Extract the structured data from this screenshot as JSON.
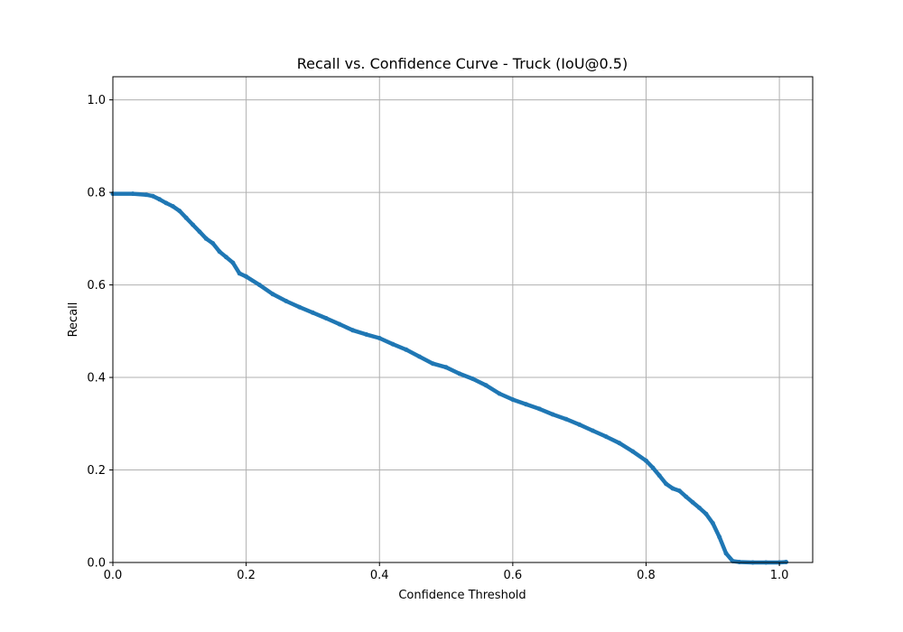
{
  "chart_data": {
    "type": "line",
    "title": "Recall vs. Confidence Curve - Truck (IoU@0.5)",
    "xlabel": "Confidence Threshold",
    "ylabel": "Recall",
    "xlim": [
      0.0,
      1.05
    ],
    "ylim": [
      0.0,
      1.05
    ],
    "xticks": [
      "0.0",
      "0.2",
      "0.4",
      "0.6",
      "0.8",
      "1.0"
    ],
    "yticks": [
      "0.0",
      "0.2",
      "0.4",
      "0.6",
      "0.8",
      "1.0"
    ],
    "grid": true,
    "series": [
      {
        "color": "#1f77b4",
        "x": [
          0.0,
          0.03,
          0.05,
          0.06,
          0.07,
          0.08,
          0.09,
          0.1,
          0.11,
          0.12,
          0.13,
          0.14,
          0.15,
          0.16,
          0.17,
          0.18,
          0.19,
          0.2,
          0.22,
          0.24,
          0.26,
          0.28,
          0.3,
          0.32,
          0.34,
          0.36,
          0.38,
          0.4,
          0.42,
          0.44,
          0.46,
          0.48,
          0.5,
          0.52,
          0.54,
          0.56,
          0.58,
          0.6,
          0.62,
          0.64,
          0.66,
          0.68,
          0.7,
          0.72,
          0.74,
          0.76,
          0.78,
          0.8,
          0.81,
          0.82,
          0.83,
          0.84,
          0.85,
          0.86,
          0.87,
          0.88,
          0.89,
          0.9,
          0.91,
          0.92,
          0.93,
          0.94,
          0.96,
          0.98,
          1.0,
          1.01
        ],
        "y": [
          0.797,
          0.797,
          0.795,
          0.792,
          0.785,
          0.777,
          0.77,
          0.76,
          0.745,
          0.73,
          0.715,
          0.7,
          0.69,
          0.672,
          0.66,
          0.648,
          0.625,
          0.618,
          0.6,
          0.58,
          0.565,
          0.552,
          0.54,
          0.528,
          0.515,
          0.502,
          0.493,
          0.485,
          0.472,
          0.46,
          0.445,
          0.43,
          0.422,
          0.408,
          0.397,
          0.383,
          0.365,
          0.352,
          0.342,
          0.332,
          0.32,
          0.31,
          0.298,
          0.285,
          0.272,
          0.258,
          0.24,
          0.22,
          0.205,
          0.188,
          0.17,
          0.16,
          0.155,
          0.142,
          0.13,
          0.118,
          0.105,
          0.085,
          0.055,
          0.02,
          0.003,
          0.001,
          0.0,
          0.0,
          0.0,
          0.001
        ]
      }
    ]
  }
}
